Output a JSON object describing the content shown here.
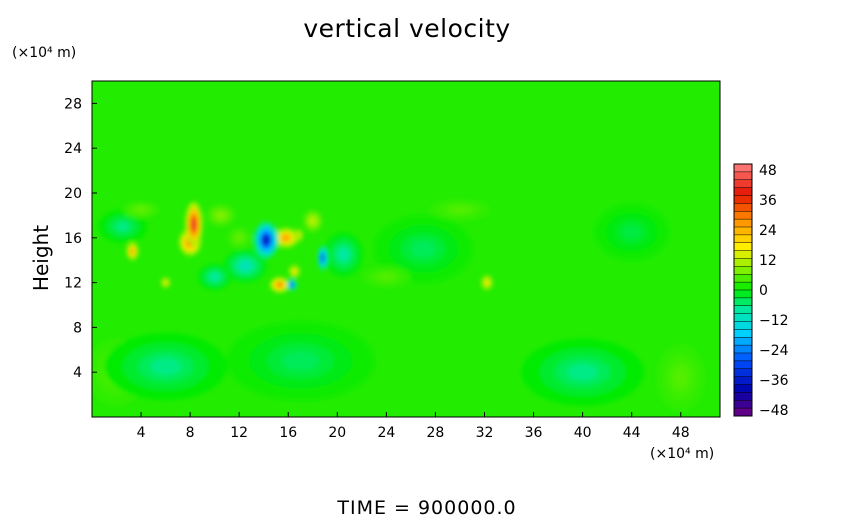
{
  "chart_data": {
    "type": "heatmap",
    "title": "vertical velocity",
    "ylabel": "Height",
    "x_unit": "(×10⁴ m)",
    "y_unit": "(×10⁴ m)",
    "xlim": [
      0,
      51.2
    ],
    "ylim": [
      0,
      30
    ],
    "x_ticks": [
      "4",
      "8",
      "12",
      "16",
      "20",
      "24",
      "28",
      "32",
      "36",
      "40",
      "44",
      "48"
    ],
    "y_ticks": [
      "4",
      "8",
      "12",
      "16",
      "20",
      "24",
      "28"
    ],
    "colorbar_ticks": [
      "48",
      "36",
      "24",
      "12",
      "0",
      "−12",
      "−24",
      "−36",
      "−48"
    ],
    "vmin": -48,
    "vmax": 48,
    "background_value": 2,
    "blobs": [
      {
        "x": 8.3,
        "y": 17.2,
        "rx": 0.7,
        "ry": 2.0,
        "v": 40
      },
      {
        "x": 8.0,
        "y": 15.6,
        "rx": 0.9,
        "ry": 1.2,
        "v": 32
      },
      {
        "x": 3.3,
        "y": 14.8,
        "rx": 0.5,
        "ry": 0.8,
        "v": 26
      },
      {
        "x": 6.0,
        "y": 12.0,
        "rx": 0.4,
        "ry": 0.5,
        "v": 18
      },
      {
        "x": 15.8,
        "y": 16.0,
        "rx": 1.1,
        "ry": 0.9,
        "v": 26
      },
      {
        "x": 16.8,
        "y": 16.2,
        "rx": 0.4,
        "ry": 0.6,
        "v": 22
      },
      {
        "x": 15.3,
        "y": 11.8,
        "rx": 0.8,
        "ry": 0.7,
        "v": 30
      },
      {
        "x": 16.5,
        "y": 13.0,
        "rx": 0.5,
        "ry": 0.6,
        "v": 18
      },
      {
        "x": 18.0,
        "y": 17.5,
        "rx": 0.8,
        "ry": 1.0,
        "v": 12
      },
      {
        "x": 32.2,
        "y": 12.0,
        "rx": 0.5,
        "ry": 0.7,
        "v": 18
      },
      {
        "x": 14.2,
        "y": 15.8,
        "rx": 1.0,
        "ry": 1.6,
        "v": -38
      },
      {
        "x": 16.3,
        "y": 11.8,
        "rx": 0.4,
        "ry": 0.5,
        "v": -34
      },
      {
        "x": 18.8,
        "y": 14.2,
        "rx": 0.4,
        "ry": 1.1,
        "v": -32
      },
      {
        "x": 12.5,
        "y": 13.5,
        "rx": 1.8,
        "ry": 1.5,
        "v": -10
      },
      {
        "x": 20.5,
        "y": 14.5,
        "rx": 1.6,
        "ry": 2.0,
        "v": -8
      },
      {
        "x": 10.0,
        "y": 12.5,
        "rx": 1.4,
        "ry": 1.2,
        "v": -8
      },
      {
        "x": 2.5,
        "y": 17.0,
        "rx": 2.0,
        "ry": 1.5,
        "v": -6
      },
      {
        "x": 6.0,
        "y": 4.5,
        "rx": 5.0,
        "ry": 3.0,
        "v": -6
      },
      {
        "x": 17.0,
        "y": 5.0,
        "rx": 6.0,
        "ry": 3.5,
        "v": -4
      },
      {
        "x": 40.0,
        "y": 4.0,
        "rx": 5.0,
        "ry": 3.0,
        "v": -6
      },
      {
        "x": 27.0,
        "y": 15.0,
        "rx": 4.0,
        "ry": 3.0,
        "v": -4
      },
      {
        "x": 44.0,
        "y": 16.5,
        "rx": 3.0,
        "ry": 2.5,
        "v": -3
      },
      {
        "x": 2.0,
        "y": 4.0,
        "rx": 2.5,
        "ry": 3.0,
        "v": 5
      },
      {
        "x": 48.0,
        "y": 3.5,
        "rx": 2.0,
        "ry": 3.0,
        "v": 5
      },
      {
        "x": 38.0,
        "y": 4.0,
        "rx": 1.2,
        "ry": 2.5,
        "v": 4
      },
      {
        "x": 4.0,
        "y": 18.5,
        "rx": 1.5,
        "ry": 0.8,
        "v": 6
      },
      {
        "x": 30.0,
        "y": 18.5,
        "rx": 2.5,
        "ry": 1.0,
        "v": 5
      },
      {
        "x": 24.0,
        "y": 12.5,
        "rx": 2.0,
        "ry": 1.0,
        "v": 5
      },
      {
        "x": 10.5,
        "y": 18.0,
        "rx": 1.2,
        "ry": 1.0,
        "v": 8
      },
      {
        "x": 12.0,
        "y": 16.0,
        "rx": 1.0,
        "ry": 1.0,
        "v": 6
      }
    ],
    "time_text": "TIME  =  900000.0"
  }
}
